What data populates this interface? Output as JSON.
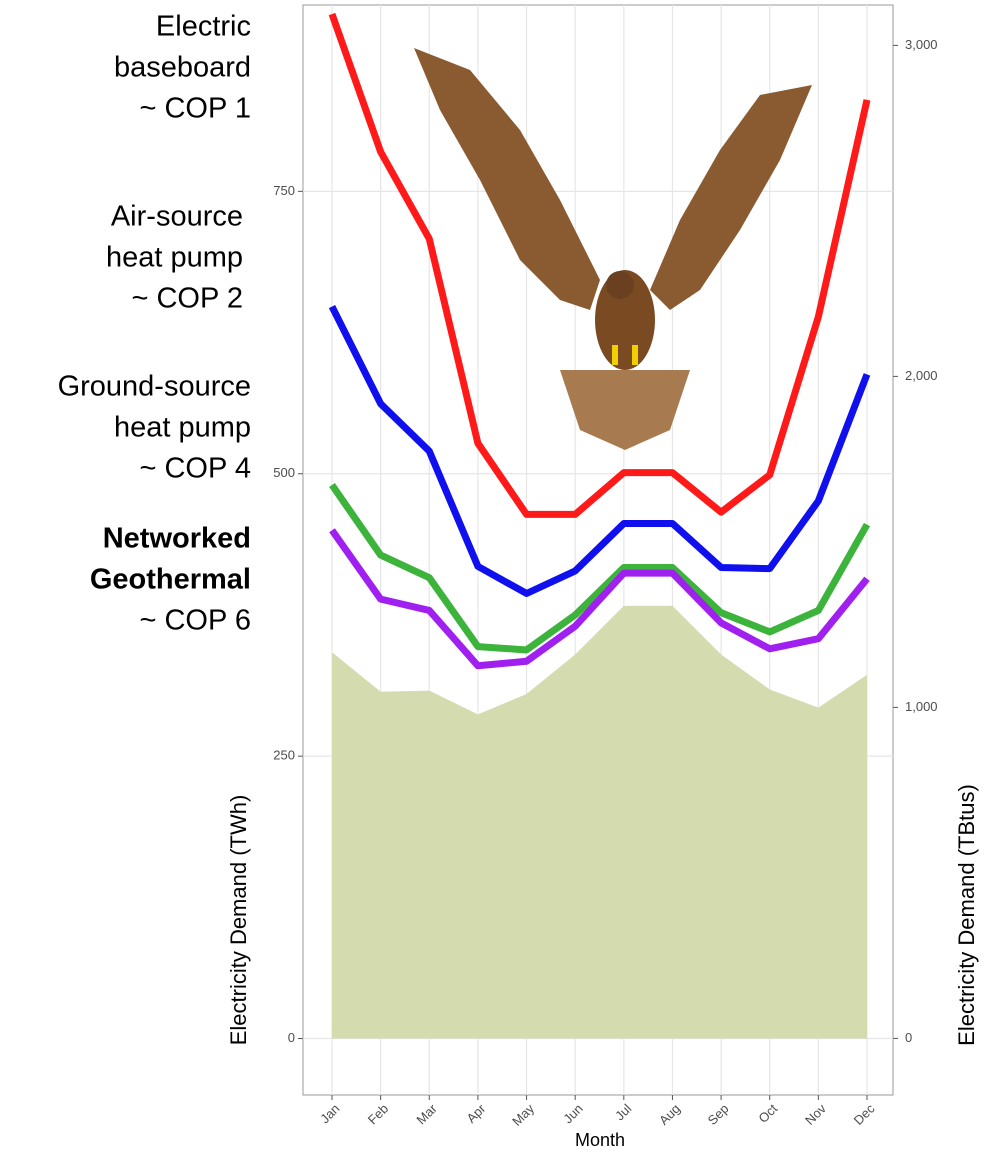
{
  "chart_data": {
    "type": "line",
    "x_label": "Month",
    "y_label": "Electricity Demand (TWh)",
    "y2_label": "Electricity Demand (TBtus)",
    "categories": [
      "Jan",
      "Feb",
      "Mar",
      "Apr",
      "May",
      "Jun",
      "Jul",
      "Aug",
      "Sep",
      "Oct",
      "Nov",
      "Dec"
    ],
    "ylim": [
      -50,
      915
    ],
    "yticks": [
      0,
      250,
      500,
      750
    ],
    "y2lim": [
      -171,
      3122
    ],
    "y2ticks": [
      0,
      {
        "value": 1000,
        "label": "1,000"
      },
      {
        "value": 2000,
        "label": "2,000"
      },
      {
        "value": 3000,
        "label": "3,000"
      }
    ],
    "grid": true,
    "series": [
      {
        "color": "#d3dbaf",
        "area": true,
        "values": [
          342,
          307,
          308,
          287,
          305,
          340,
          383,
          383,
          340,
          309,
          293,
          322
        ]
      },
      {
        "color": "#ff1a1a",
        "values": [
          907,
          785,
          708,
          527,
          464,
          464,
          501,
          501,
          466,
          499,
          639,
          831
        ]
      },
      {
        "color": "#1010ee",
        "values": [
          648,
          562,
          520,
          418,
          394,
          414,
          456,
          456,
          417,
          416,
          476,
          588
        ]
      },
      {
        "color": "#3cb43c",
        "values": [
          490,
          428,
          408,
          347,
          344,
          375,
          417,
          417,
          377,
          360,
          379,
          455
        ]
      },
      {
        "color": "#a020f0",
        "values": [
          450,
          389,
          379,
          330,
          334,
          365,
          412,
          412,
          368,
          345,
          354,
          407
        ]
      }
    ],
    "annotations": [
      {
        "lines": [
          "Electric",
          "baseboard",
          "~ COP 1"
        ]
      },
      {
        "lines": [
          "Air-source",
          "heat pump",
          "~ COP 2"
        ]
      },
      {
        "lines": [
          "Ground-source",
          "heat pump",
          "~ COP 4"
        ]
      },
      {
        "lines": [
          "Networked",
          "Geothermal",
          "~ COP 6"
        ],
        "bold_lines": 2
      }
    ]
  }
}
